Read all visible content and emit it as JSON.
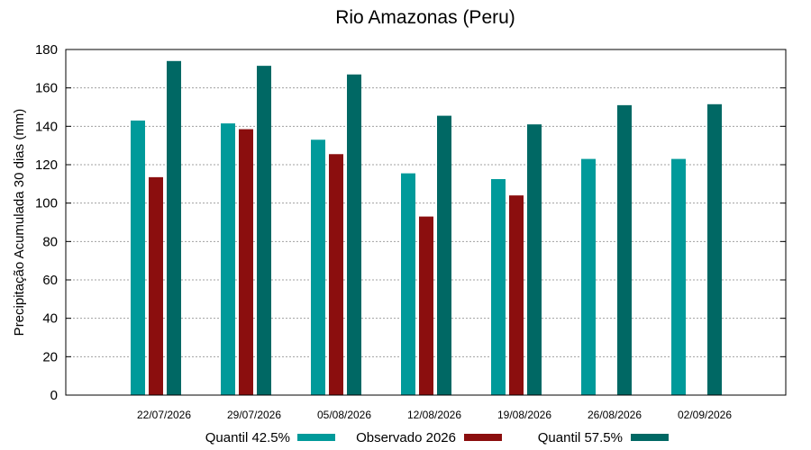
{
  "chart_data": {
    "type": "bar",
    "title": "Rio Amazonas (Peru)",
    "xlabel": "",
    "ylabel": "Precipitação Acumulada 30 dias (mm)",
    "ylim": [
      0,
      180
    ],
    "yticks": [
      0,
      20,
      40,
      60,
      80,
      100,
      120,
      140,
      160,
      180
    ],
    "grid": true,
    "legend_position": "bottom",
    "categories": [
      "22/07/2026",
      "29/07/2026",
      "05/08/2026",
      "12/08/2026",
      "19/08/2026",
      "26/08/2026",
      "02/09/2026"
    ],
    "series": [
      {
        "name": "Quantil 42.5%",
        "color": "#009a9a",
        "values": [
          143,
          141.5,
          133,
          115.5,
          112.5,
          123,
          123
        ]
      },
      {
        "name": "Observado 2026",
        "color": "#8b0e0e",
        "values": [
          113.5,
          138.5,
          125.5,
          93,
          104,
          null,
          null
        ]
      },
      {
        "name": "Quantil 57.5%",
        "color": "#006864",
        "values": [
          174,
          171.5,
          167,
          145.5,
          141,
          151,
          151.5
        ]
      }
    ]
  }
}
